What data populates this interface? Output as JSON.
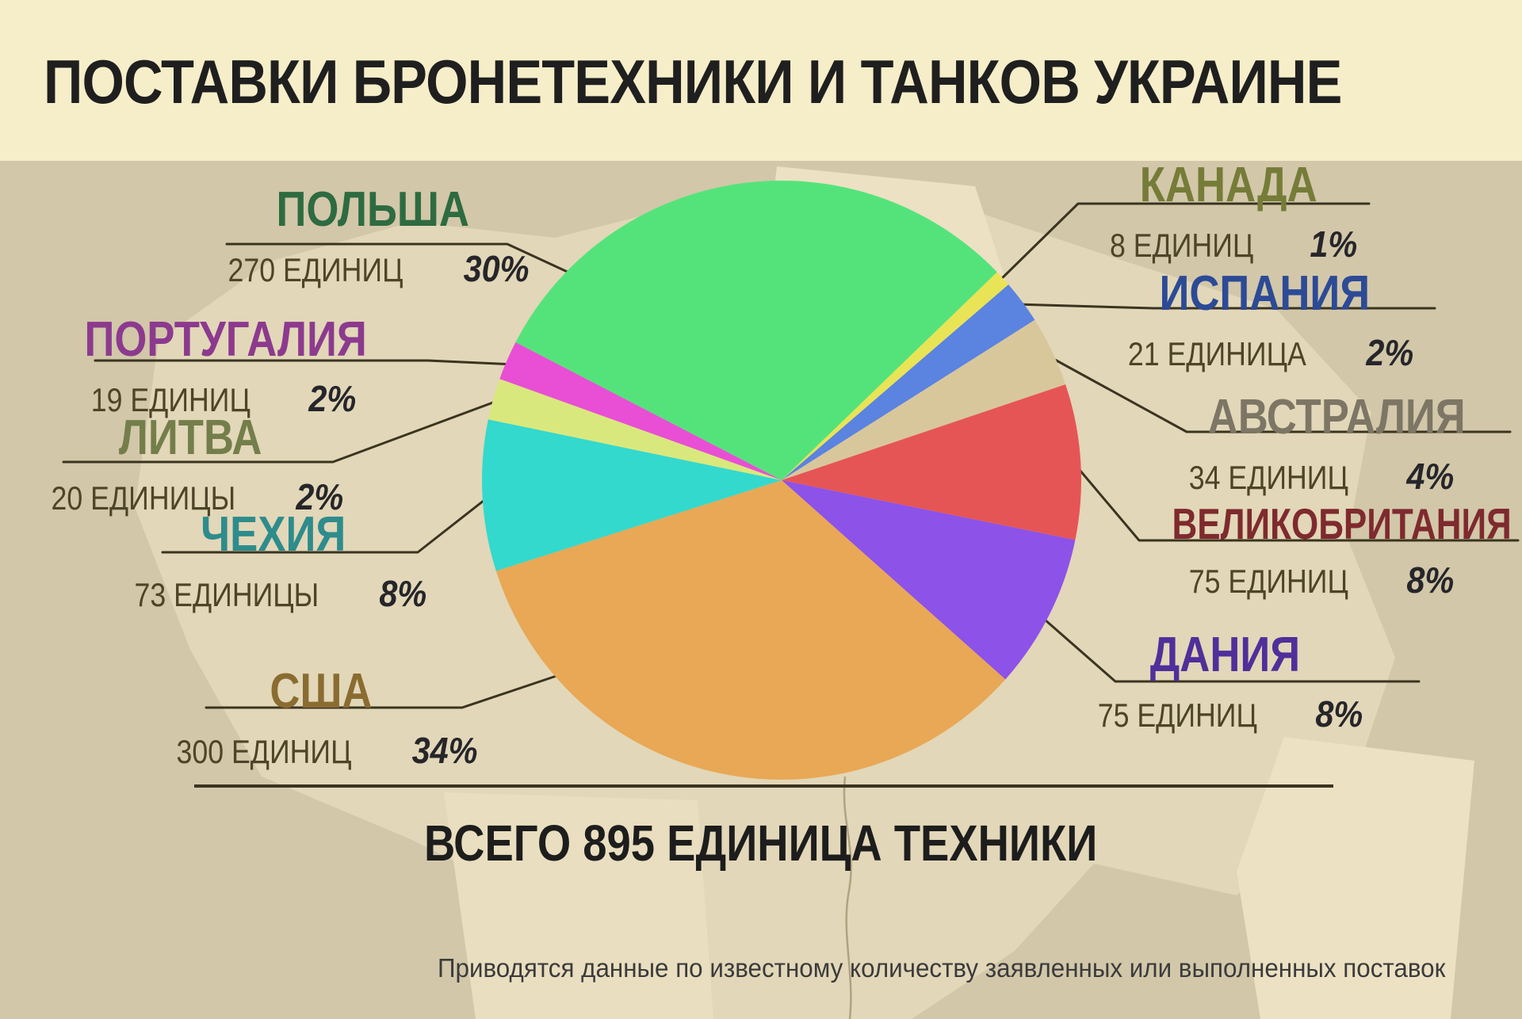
{
  "title": "ПОСТАВКИ БРОНЕТЕХНИКИ И ТАНКОВ УКРАИНЕ",
  "total_label": "ВСЕГО 895 ЕДИНИЦА ТЕХНИКИ",
  "footnote": "Приводятся данные по известному количеству заявленных или выполненных поставок",
  "colors": {
    "title_band": "#f6eec9",
    "background": "#d2c7a9",
    "map_silhouette": "#e2d7b8",
    "leader_line": "#3a3420",
    "title_text": "#1f1f1f",
    "units_text": "#4d4429",
    "percent_text": "#26262a"
  },
  "chart_data": {
    "type": "pie",
    "title": "ПОСТАВКИ БРОНЕТЕХНИКИ И ТАНКОВ УКРАИНЕ",
    "total_units": 895,
    "total_caption": "ВСЕГО 895 ЕДИНИЦА ТЕХНИКИ",
    "start_angle_deg": -62.6,
    "direction": "clockwise",
    "legend_position": "labels-around-pie",
    "slices": [
      {
        "key": "poland",
        "country": "ПОЛЬША",
        "units": 270,
        "units_label": "270 ЕДИНИЦ",
        "percent": 30,
        "percent_label": "30%",
        "color": "#54e37b",
        "label_color": "#2e6b40"
      },
      {
        "key": "canada",
        "country": "КАНАДА",
        "units": 8,
        "units_label": "8 ЕДИНИЦ",
        "percent": 1,
        "percent_label": "1%",
        "color": "#e8e455",
        "label_color": "#757c38"
      },
      {
        "key": "spain",
        "country": "ИСПАНИЯ",
        "units": 21,
        "units_label": "21 ЕДИНИЦА",
        "percent": 2,
        "percent_label": "2%",
        "color": "#5b83e0",
        "label_color": "#2c4a96"
      },
      {
        "key": "australia",
        "country": "АВСТРАЛИЯ",
        "units": 34,
        "units_label": "34 ЕДИНИЦ",
        "percent": 4,
        "percent_label": "4%",
        "color": "#d9c79c",
        "label_color": "#7d7665"
      },
      {
        "key": "uk",
        "country": "ВЕЛИКОБРИТАНИЯ",
        "units": 75,
        "units_label": "75 ЕДИНИЦ",
        "percent": 8,
        "percent_label": "8%",
        "color": "#e65555",
        "label_color": "#7e2a2e"
      },
      {
        "key": "denmark",
        "country": "ДАНИЯ",
        "units": 75,
        "units_label": "75 ЕДИНИЦ",
        "percent": 8,
        "percent_label": "8%",
        "color": "#8d52e8",
        "label_color": "#4f2f9a"
      },
      {
        "key": "usa",
        "country": "США",
        "units": 300,
        "units_label": "300 ЕДИНИЦ",
        "percent": 34,
        "percent_label": "34%",
        "color": "#e8a856",
        "label_color": "#8a6c32"
      },
      {
        "key": "czechia",
        "country": "ЧЕХИЯ",
        "units": 73,
        "units_label": "73 ЕДИНИЦЫ",
        "percent": 8,
        "percent_label": "8%",
        "color": "#33d9cd",
        "label_color": "#2e8c8c"
      },
      {
        "key": "lithuania",
        "country": "ЛИТВА",
        "units": 20,
        "units_label": "20 ЕДИНИЦЫ",
        "percent": 2,
        "percent_label": "2%",
        "color": "#d9e87d",
        "label_color": "#747e4b"
      },
      {
        "key": "portugal",
        "country": "ПОРТУГАЛИЯ",
        "units": 19,
        "units_label": "19 ЕДИНИЦ",
        "percent": 2,
        "percent_label": "2%",
        "color": "#e84fd4",
        "label_color": "#8c3a8e"
      }
    ]
  }
}
